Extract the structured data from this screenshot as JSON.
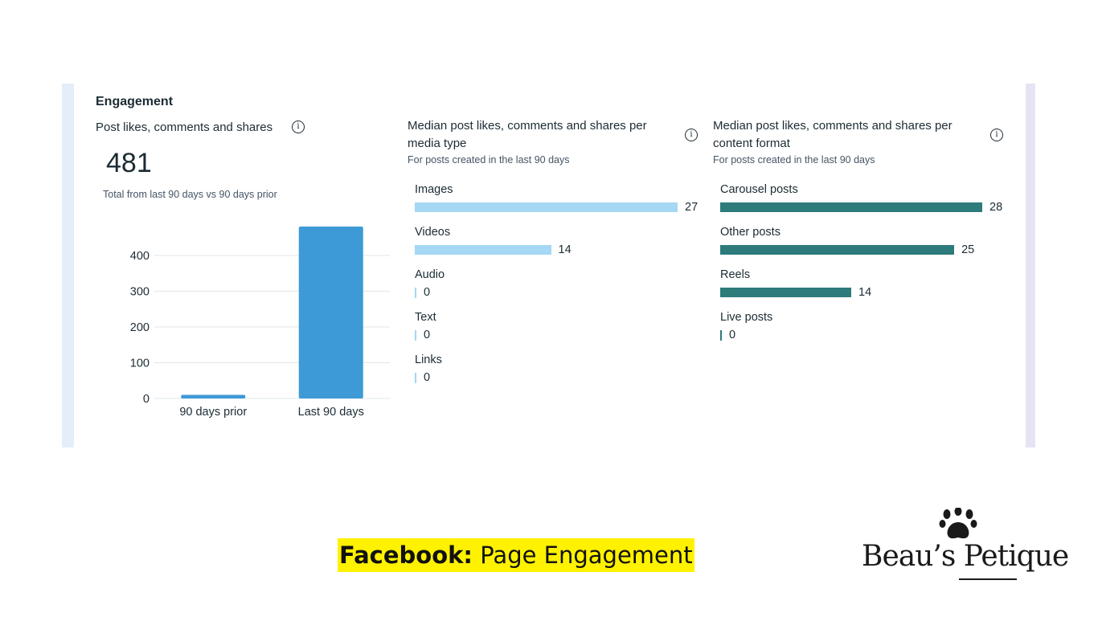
{
  "panel": {
    "section_title": "Engagement"
  },
  "card_total": {
    "title": "Post likes, comments and shares",
    "value": "481",
    "caption": "Total from last 90 days vs 90 days prior"
  },
  "card_media": {
    "title_line1": "Median post likes, comments and shares per",
    "title_line2": "media type",
    "subtitle": "For posts created in the last 90 days"
  },
  "card_format": {
    "title_line1": "Median post likes, comments and shares per",
    "title_line2": "content format",
    "subtitle": "For posts created in the last 90 days"
  },
  "info_icon_glyph": "i",
  "colors": {
    "vbar": "#3e9ad6",
    "media_bar": "#a4d8f4",
    "format_bar": "#2e7b7b",
    "gridline": "#e1e4e8",
    "highlight": "#fff200"
  },
  "chart_data": [
    {
      "type": "bar",
      "categories": [
        "90 days prior",
        "Last 90 days"
      ],
      "values": [
        10,
        481
      ],
      "ylim": [
        0,
        481
      ],
      "yticks": [
        0,
        100,
        200,
        300,
        400
      ],
      "grid": true
    },
    {
      "type": "bar",
      "orientation": "horizontal",
      "categories": [
        "Images",
        "Videos",
        "Audio",
        "Text",
        "Links"
      ],
      "values": [
        27,
        14,
        0,
        0,
        0
      ],
      "xlim": [
        0,
        27
      ]
    },
    {
      "type": "bar",
      "orientation": "horizontal",
      "categories": [
        "Carousel posts",
        "Other posts",
        "Reels",
        "Live posts"
      ],
      "values": [
        28,
        25,
        14,
        0
      ],
      "xlim": [
        0,
        28
      ]
    }
  ],
  "footer": {
    "label_bold": "Facebook:",
    "label_rest": " Page Engagement"
  },
  "brand": {
    "name": "Beau’s Petique",
    "icon": "paw-icon"
  }
}
